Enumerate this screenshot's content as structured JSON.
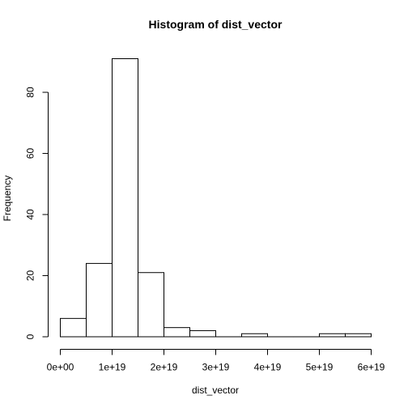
{
  "chart_data": {
    "type": "bar",
    "title": "Histogram of dist_vector",
    "xlabel": "dist_vector",
    "ylabel": "Frequency",
    "bins": [
      {
        "x0": 0,
        "x1": 5e+18,
        "count": 6
      },
      {
        "x0": 5e+18,
        "x1": 1e+19,
        "count": 24
      },
      {
        "x0": 1e+19,
        "x1": 1.5e+19,
        "count": 91
      },
      {
        "x0": 1.5e+19,
        "x1": 2e+19,
        "count": 21
      },
      {
        "x0": 2e+19,
        "x1": 2.5e+19,
        "count": 3
      },
      {
        "x0": 2.5e+19,
        "x1": 3e+19,
        "count": 2
      },
      {
        "x0": 3e+19,
        "x1": 3.5e+19,
        "count": 0
      },
      {
        "x0": 3.5e+19,
        "x1": 4e+19,
        "count": 1
      },
      {
        "x0": 4e+19,
        "x1": 4.5e+19,
        "count": 0
      },
      {
        "x0": 4.5e+19,
        "x1": 5e+19,
        "count": 0
      },
      {
        "x0": 5e+19,
        "x1": 5.5e+19,
        "count": 1
      },
      {
        "x0": 5.5e+19,
        "x1": 6e+19,
        "count": 1
      }
    ],
    "xlim": [
      0,
      6e+19
    ],
    "ylim": [
      0,
      91
    ],
    "x_ticks": [
      {
        "value": 0,
        "label": "0e+00"
      },
      {
        "value": 1e+19,
        "label": "1e+19"
      },
      {
        "value": 2e+19,
        "label": "2e+19"
      },
      {
        "value": 3e+19,
        "label": "3e+19"
      },
      {
        "value": 4e+19,
        "label": "4e+19"
      },
      {
        "value": 5e+19,
        "label": "5e+19"
      },
      {
        "value": 6e+19,
        "label": "6e+19"
      }
    ],
    "y_ticks": [
      {
        "value": 0,
        "label": "0"
      },
      {
        "value": 20,
        "label": "20"
      },
      {
        "value": 40,
        "label": "40"
      },
      {
        "value": 60,
        "label": "60"
      },
      {
        "value": 80,
        "label": "80"
      }
    ],
    "grid": false,
    "legend": "none",
    "colors": {
      "bar_fill": "#ffffff",
      "bar_stroke": "#000000",
      "text": "#000000"
    }
  }
}
